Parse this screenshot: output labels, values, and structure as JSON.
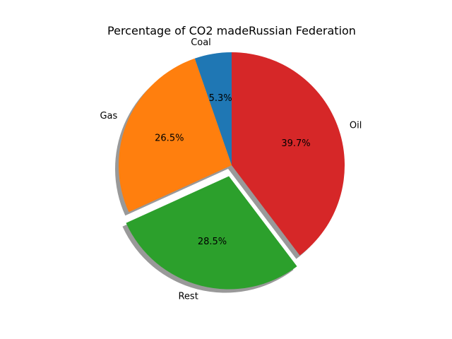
{
  "chart_data": {
    "type": "pie",
    "title": "Percentage of CO2 madeRussian Federation",
    "labels": [
      "Coal",
      "Gas",
      "Rest",
      "Oil"
    ],
    "values": [
      5.3,
      26.5,
      28.5,
      39.7
    ],
    "percent_labels": [
      "5.3%",
      "26.5%",
      "28.5%",
      "39.7%"
    ],
    "colors": [
      "#1f77b4",
      "#ff7f0e",
      "#2ca02c",
      "#d62728"
    ],
    "exploded": [
      "Rest"
    ],
    "shadow": true,
    "start_angle_deg": 90,
    "direction": "counterclockwise"
  }
}
